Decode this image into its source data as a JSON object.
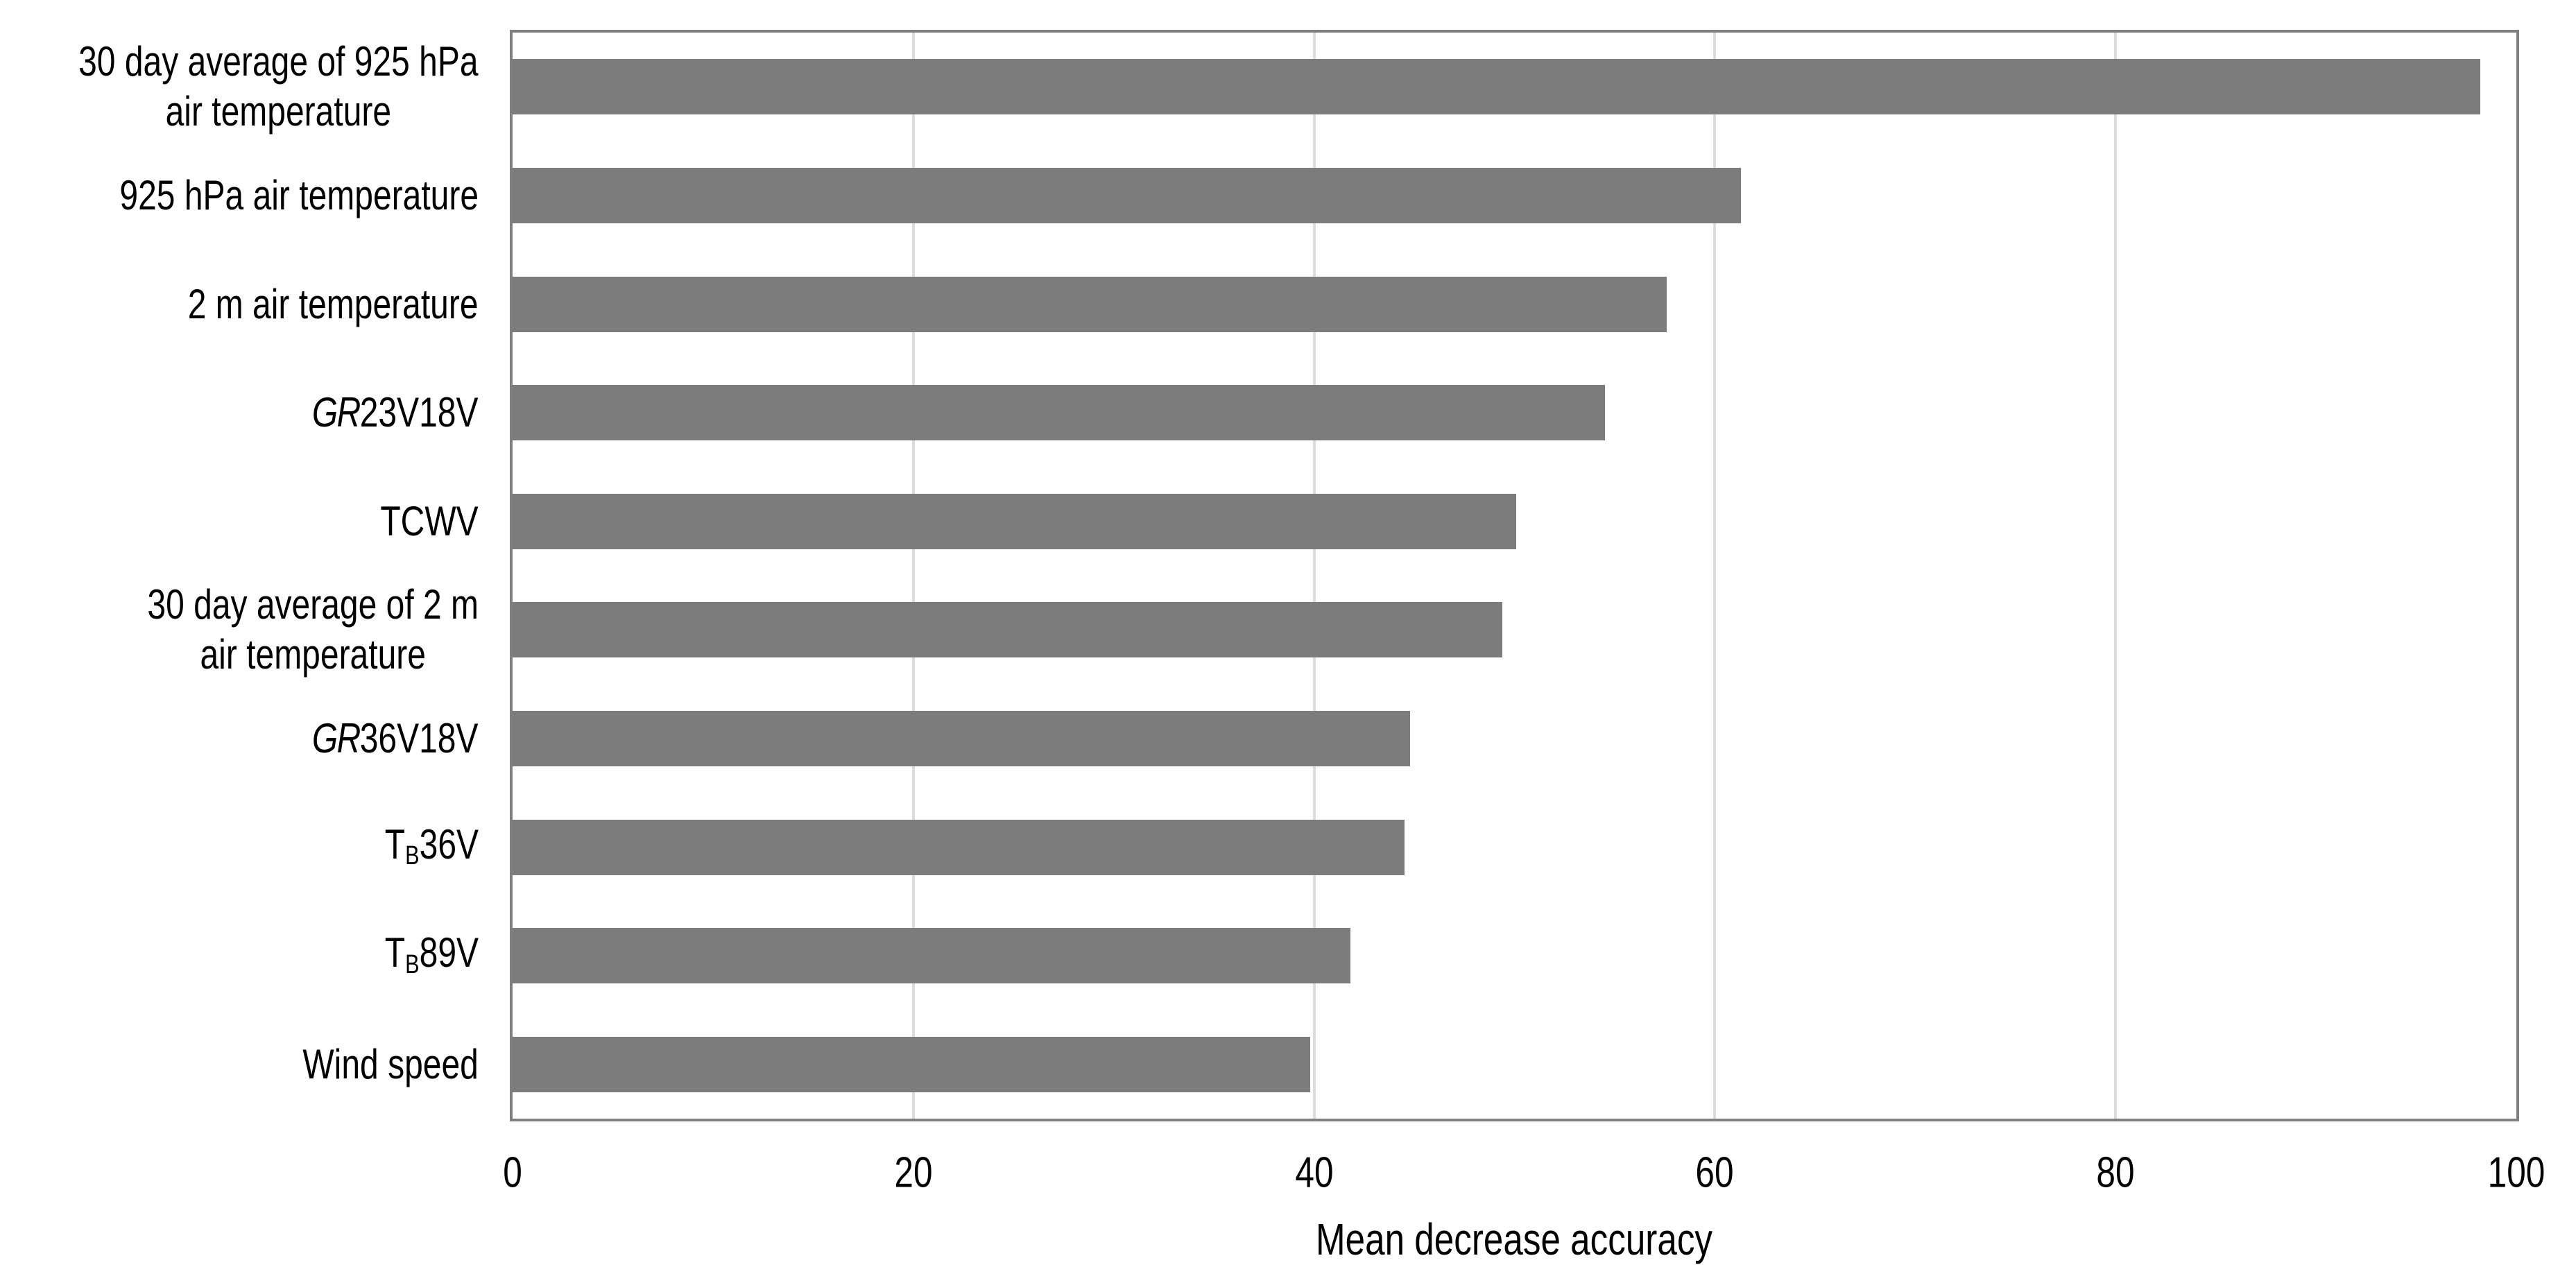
{
  "chart_data": {
    "type": "bar",
    "orientation": "horizontal",
    "title": "",
    "xlabel": "Mean decrease accuracy",
    "ylabel": "",
    "xlim": [
      0,
      100
    ],
    "xticks": [
      0,
      20,
      40,
      60,
      80,
      100
    ],
    "gridlines_at": [
      20,
      40,
      60,
      80
    ],
    "grid": "vertical-major-only",
    "legend": "none",
    "colors": {
      "bar": "#7c7c7c",
      "gridline": "#dcdcdc",
      "plot_border": "#808080",
      "text": "#000000",
      "background": "#ffffff"
    },
    "bars": [
      {
        "label": "30 day average of 925 hPa air temperature",
        "value": 98.2,
        "lines": [
          [
            {
              "t": "30 day average of 925 hPa"
            }
          ],
          [
            {
              "t": "air temperature"
            }
          ]
        ]
      },
      {
        "label": "925 hPa air temperature",
        "value": 61.3,
        "lines": [
          [
            {
              "t": "925 hPa air temperature"
            }
          ]
        ]
      },
      {
        "label": "2 m air temperature",
        "value": 57.6,
        "lines": [
          [
            {
              "t": "2 m air temperature"
            }
          ]
        ]
      },
      {
        "label": "GR23V18V",
        "value": 54.5,
        "lines": [
          [
            {
              "t": "GR",
              "style": "italic"
            },
            {
              "t": "23V18V"
            }
          ]
        ]
      },
      {
        "label": "TCWV",
        "value": 50.1,
        "lines": [
          [
            {
              "t": "TCWV"
            }
          ]
        ]
      },
      {
        "label": "30 day average of 2 m air temperature",
        "value": 49.4,
        "lines": [
          [
            {
              "t": "30 day average of 2 m"
            }
          ],
          [
            {
              "t": "air temperature"
            }
          ]
        ]
      },
      {
        "label": "GR36V18V",
        "value": 44.8,
        "lines": [
          [
            {
              "t": "GR",
              "style": "italic"
            },
            {
              "t": "36V18V"
            }
          ]
        ]
      },
      {
        "label": "TB36V",
        "value": 44.5,
        "lines": [
          [
            {
              "t": "T"
            },
            {
              "t": "B",
              "style": "sub"
            },
            {
              "t": "36V"
            }
          ]
        ]
      },
      {
        "label": "TB89V",
        "value": 41.8,
        "lines": [
          [
            {
              "t": "T"
            },
            {
              "t": "B",
              "style": "sub"
            },
            {
              "t": "89V"
            }
          ]
        ]
      },
      {
        "label": "Wind speed",
        "value": 39.8,
        "lines": [
          [
            {
              "t": "Wind speed"
            }
          ]
        ]
      }
    ]
  }
}
